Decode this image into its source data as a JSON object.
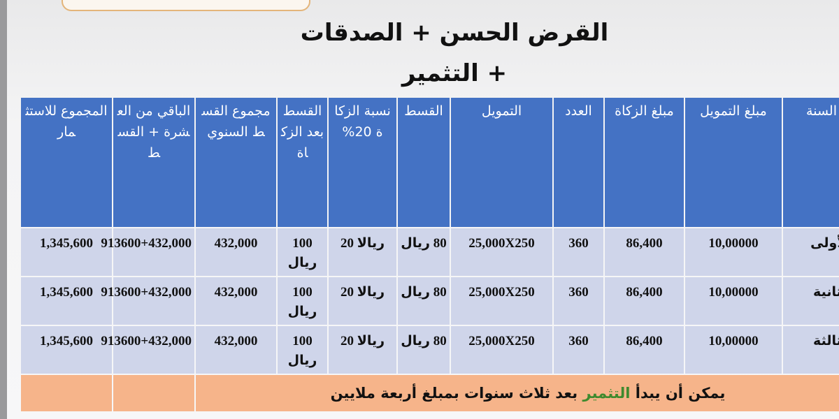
{
  "title": {
    "line1": "القرض الحسن + الصدقات",
    "line2": "+ التثمير"
  },
  "table": {
    "headers": [
      "السنة",
      "مبلغ التمويل",
      "مبلغ الزكاة",
      "العدد",
      "التمويل",
      "القسط",
      "نسبة الزكاة 20%",
      "القسط بعد الزكاة",
      "مجموع القسط السنوي",
      "الباقي من العشرة + القسط",
      "المجموع للاستثمار"
    ],
    "rows": [
      [
        "الأولى",
        "10,00000",
        "86,400",
        "360",
        "25,000X250",
        "80 ريال",
        "ريالا 20",
        "100 ريال",
        "432,000",
        "913600+432,000",
        "1,345,600"
      ],
      [
        "الثانية",
        "10,00000",
        "86,400",
        "360",
        "25,000X250",
        "80 ريال",
        "ريالا 20",
        "100 ريال",
        "432,000",
        "913600+432,000",
        "1,345,600"
      ],
      [
        "الثالثة",
        "10,00000",
        "86,400",
        "360",
        "25,000X250",
        "80 ريال",
        "ريالا 20",
        "100 ريال",
        "432,000",
        "913600+432,000",
        "1,345,600"
      ]
    ],
    "note": {
      "before": "يمكن أن يبدأ",
      "highlight": "التثمير",
      "after": "بعد ثلاث سنوات بمبلغ أربعة ملايين"
    }
  }
}
